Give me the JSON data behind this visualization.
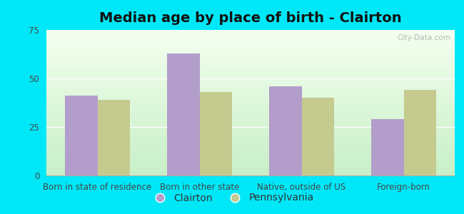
{
  "title": "Median age by place of birth - Clairton",
  "categories": [
    "Born in state of residence",
    "Born in other state",
    "Native, outside of US",
    "Foreign-born"
  ],
  "clairton_values": [
    41,
    63,
    46,
    29
  ],
  "pennsylvania_values": [
    39,
    43,
    40,
    44
  ],
  "clairton_color": "#b39dca",
  "pennsylvania_color": "#c5ca8e",
  "ylim": [
    0,
    75
  ],
  "yticks": [
    0,
    25,
    50,
    75
  ],
  "bg_color_top": "#f5fff0",
  "bg_color_bottom": "#c8f0c8",
  "outer_background": "#00e8f8",
  "legend_labels": [
    "Clairton",
    "Pennsylvania"
  ],
  "bar_width": 0.32,
  "title_fontsize": 14,
  "tick_fontsize": 8.5,
  "legend_fontsize": 10,
  "watermark": "City-Data.com"
}
